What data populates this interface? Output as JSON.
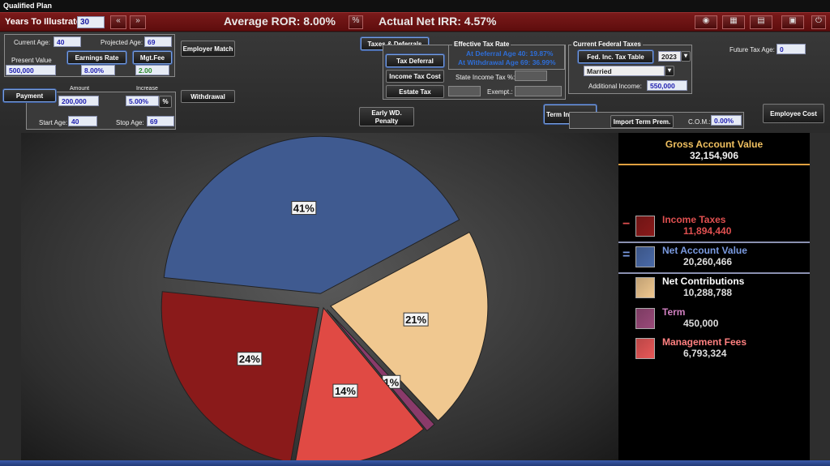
{
  "window": {
    "title": "Qualified Plan"
  },
  "topbar": {
    "years_label": "Years To Illustrate:",
    "years_value": "30",
    "prev_icon": "double-left-arrow-icon",
    "next_icon": "double-right-arrow-icon",
    "average_ror": "Average ROR: 8.00%",
    "percent_button": "%",
    "actual_irr": "Actual Net IRR: 4.57%",
    "right_icons": [
      "eye-icon",
      "grid-icon",
      "table-icon",
      "chart-icon",
      "power-icon"
    ]
  },
  "inputs": {
    "current_age_label": "Current Age:",
    "current_age": "40",
    "projected_age_label": "Projected Age:",
    "projected_age": "69",
    "present_value_label": "Present Value",
    "present_value": "500,000",
    "earnings_rate_button": "Earnings Rate",
    "earnings_rate": "8.00%",
    "mgt_fee_button": "Mgt.Fee",
    "mgt_fee": "2.00",
    "employer_match_button": "Employer Match",
    "payment_button": "Payment",
    "amount_label": "Amount",
    "amount": "200,000",
    "increase_label": "Increase",
    "increase": "5.00%",
    "increase_unit_button": "%",
    "withdrawal_button": "Withdrawal",
    "start_age_label": "Start Age:",
    "start_age": "40",
    "stop_age_label": "Stop Age:",
    "stop_age": "69"
  },
  "tax": {
    "taxes_deferrals_button": "Taxes & Deferrals",
    "tax_deferral_button": "Tax Deferral",
    "income_tax_cost_button": "Income Tax Cost",
    "estate_tax_button": "Estate Tax",
    "effective_title": "Effective Tax Rate",
    "at_deferral": "At Deferral Age 40: 19.87%",
    "at_withdrawal": "At Withdrawal Age 69: 36.99%",
    "state_income_tax_label": "State Income Tax %:",
    "state_income_tax": "",
    "exempt_label": "Exempt.:",
    "exempt": "",
    "estate_value": "",
    "current_federal_title": "Current Federal Taxes",
    "fed_table_button": "Fed. Inc. Tax Table",
    "year": "2023",
    "filing_status": "Married",
    "additional_income_label": "Additional Income:",
    "additional_income": "550,000",
    "future_tax_age_label": "Future Tax Age:",
    "future_tax_age": "0"
  },
  "other": {
    "early_wd_button": "Early WD. Penalty",
    "term_insurance_button": "Term Insurance",
    "import_term_button": "Import Term Prem.",
    "com_label": "C.O.M.:",
    "com_value": "0.00%",
    "employee_cost_button": "Employee Cost"
  },
  "chart_data": {
    "type": "pie",
    "slices": [
      {
        "label": "41%",
        "percent": 41,
        "color": "#3f5a90"
      },
      {
        "label": "21%",
        "percent": 21,
        "color": "#f0c890"
      },
      {
        "label": "1%",
        "percent": 1,
        "color": "#8a3a6a"
      },
      {
        "label": "14%",
        "percent": 14,
        "color": "#e04a44"
      },
      {
        "label": "24%",
        "percent": 24,
        "color": "#8a1a1a"
      }
    ]
  },
  "legend": {
    "gross_title": "Gross Account Value",
    "gross_value": "32,154,906",
    "items": [
      {
        "op": "−",
        "name": "Income Taxes",
        "value": "11,894,440",
        "name_color": "#e05050",
        "swatch": "#8a1a1a"
      },
      {
        "op": "=",
        "name": "Net Account Value",
        "value": "20,260,466",
        "name_color": "#7a9ae0",
        "swatch": "#4a6aa8"
      },
      {
        "op": "",
        "name": "Net Contributions",
        "value": "10,288,788",
        "name_color": "#ffffff",
        "swatch": "#f0c890"
      },
      {
        "op": "",
        "name": "Term",
        "value": "450,000",
        "name_color": "#d080c0",
        "swatch": "#9a4a7a"
      },
      {
        "op": "",
        "name": "Management Fees",
        "value": "6,793,324",
        "name_color": "#ff8080",
        "swatch": "#e85858"
      }
    ]
  }
}
